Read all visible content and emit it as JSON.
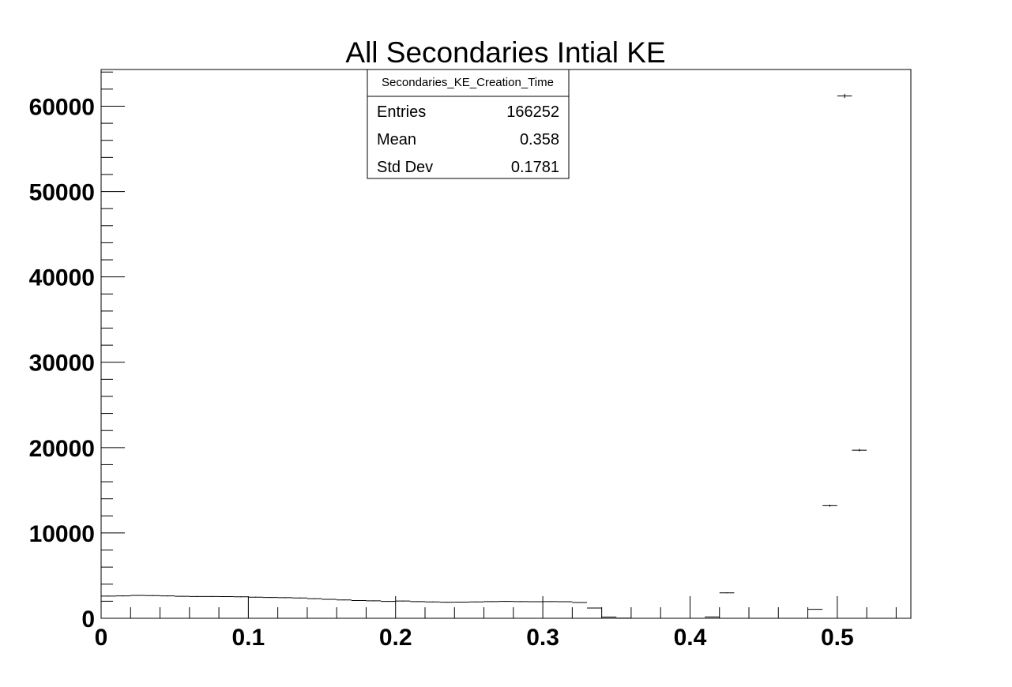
{
  "chart_data": {
    "type": "histogram",
    "title": "All Secondaries Intial KE",
    "xlim": [
      0,
      0.55
    ],
    "ylim": [
      0,
      64300
    ],
    "x_ticks": [
      0,
      0.1,
      0.2,
      0.3,
      0.4,
      0.5
    ],
    "x_tick_labels": [
      "0",
      "0.1",
      "0.2",
      "0.3",
      "0.4",
      "0.5"
    ],
    "y_ticks": [
      0,
      10000,
      20000,
      30000,
      40000,
      50000,
      60000
    ],
    "y_tick_labels": [
      "0",
      "10000",
      "20000",
      "30000",
      "40000",
      "50000",
      "60000"
    ],
    "bin_width": 0.01,
    "bin_starts": [
      0.0,
      0.01,
      0.02,
      0.03,
      0.04,
      0.05,
      0.06,
      0.07,
      0.08,
      0.09,
      0.1,
      0.11,
      0.12,
      0.13,
      0.14,
      0.15,
      0.16,
      0.17,
      0.18,
      0.19,
      0.2,
      0.21,
      0.22,
      0.23,
      0.24,
      0.25,
      0.26,
      0.27,
      0.28,
      0.29,
      0.3,
      0.31,
      0.32,
      0.33,
      0.34,
      0.35,
      0.36,
      0.37,
      0.38,
      0.39,
      0.4,
      0.41,
      0.42,
      0.43,
      0.44,
      0.45,
      0.46,
      0.47,
      0.48,
      0.49,
      0.5,
      0.51,
      0.52,
      0.53,
      0.54
    ],
    "counts": [
      2600,
      2620,
      2680,
      2660,
      2620,
      2580,
      2560,
      2560,
      2540,
      2520,
      2480,
      2440,
      2420,
      2380,
      2300,
      2220,
      2150,
      2080,
      2050,
      1980,
      2020,
      1950,
      1920,
      1880,
      1900,
      1920,
      1960,
      1980,
      1960,
      1940,
      1950,
      1940,
      1850,
      1200,
      150,
      20,
      0,
      0,
      0,
      0,
      0,
      160,
      2980,
      0,
      0,
      0,
      0,
      0,
      1050,
      13200,
      61200,
      19700,
      0,
      0,
      0
    ],
    "stats_box": {
      "name": "Secondaries_KE_Creation_Time",
      "entries_label": "Entries",
      "entries": "166252",
      "mean_label": "Mean",
      "mean": "0.358",
      "stddev_label": "Std Dev",
      "stddev": "0.1781"
    }
  }
}
